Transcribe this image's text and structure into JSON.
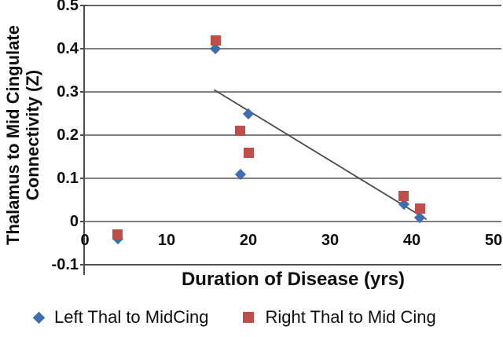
{
  "chart_data": {
    "type": "scatter",
    "title": "",
    "xlabel": "Duration of Disease (yrs)",
    "ylabel_lines": [
      "Thalamus to Mid Cingulate",
      "Connectivity (Z)"
    ],
    "xlim": [
      0,
      50
    ],
    "ylim": [
      -0.1,
      0.5
    ],
    "grid": true,
    "legend_position": "bottom",
    "x_ticks": [
      {
        "label": "0",
        "value": 0
      },
      {
        "label": "10",
        "value": 10
      },
      {
        "label": "20",
        "value": 20
      },
      {
        "label": "30",
        "value": 30
      },
      {
        "label": "40",
        "value": 40
      },
      {
        "label": "50",
        "value": 50
      }
    ],
    "y_ticks": [
      {
        "label": "0.5",
        "value": 0.5
      },
      {
        "label": "0.4",
        "value": 0.4
      },
      {
        "label": "0.3",
        "value": 0.3
      },
      {
        "label": "0.2",
        "value": 0.2
      },
      {
        "label": "0.1",
        "value": 0.1
      },
      {
        "label": "0",
        "value": 0
      },
      {
        "label": "-0.1",
        "value": -0.1
      }
    ],
    "series": [
      {
        "name": "Left Thal to MidCing",
        "marker": "diamond",
        "color": "#3f6eb0",
        "points": [
          [
            4,
            -0.04
          ],
          [
            16,
            0.4
          ],
          [
            19,
            0.11
          ],
          [
            20,
            0.25
          ],
          [
            39,
            0.04
          ],
          [
            41,
            0.01
          ]
        ]
      },
      {
        "name": "Right Thal to Mid Cing",
        "marker": "square",
        "color": "#bf4d49",
        "points": [
          [
            4,
            -0.03
          ],
          [
            16,
            0.42
          ],
          [
            19,
            0.21
          ],
          [
            20,
            0.16
          ],
          [
            39,
            0.06
          ],
          [
            41,
            0.03
          ]
        ]
      }
    ],
    "trendline": {
      "x1": 15.8,
      "y1": 0.305,
      "x2": 41.8,
      "y2": 0.005,
      "color": "#4a4a4a"
    },
    "axis_color": "#4f4f4f",
    "gridline_color": "#7f7f7f"
  }
}
